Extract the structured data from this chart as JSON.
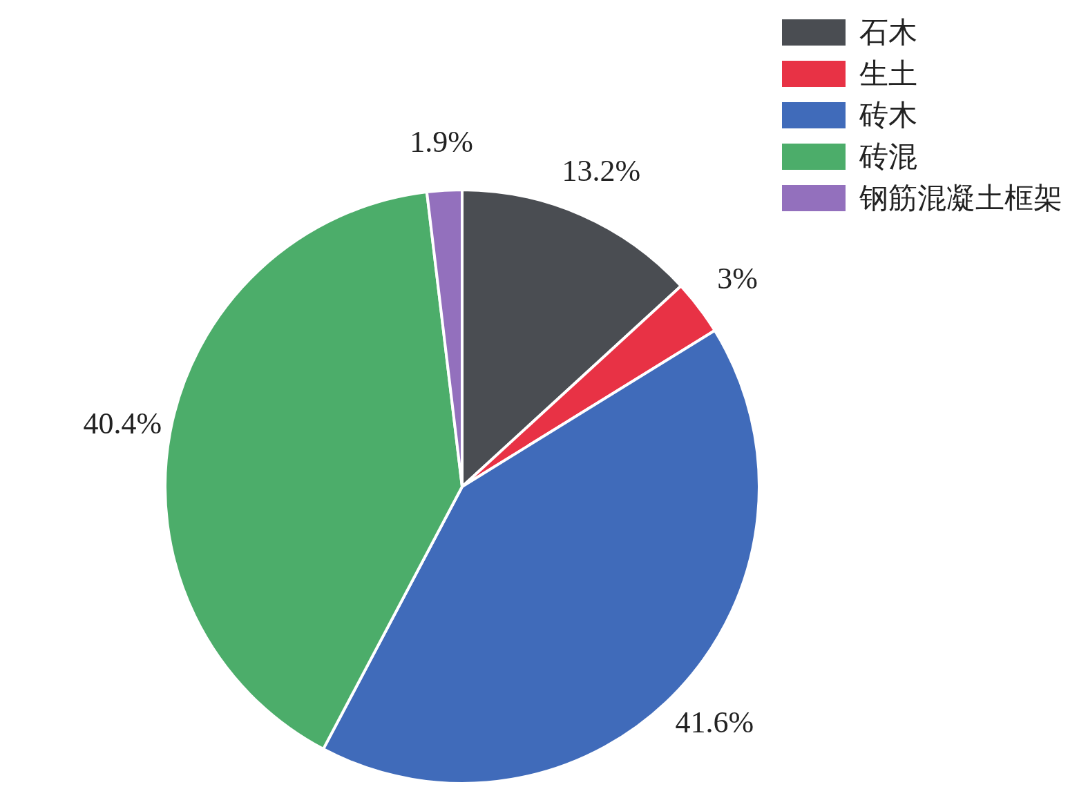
{
  "chart_data": {
    "type": "pie",
    "categories": [
      "石木",
      "生土",
      "砖木",
      "砖混",
      "钢筋混凝土框架"
    ],
    "values": [
      13.2,
      3,
      41.6,
      40.4,
      1.9
    ],
    "colors": [
      "#4a4d52",
      "#e83245",
      "#406bba",
      "#4cad6a",
      "#9370bd"
    ],
    "value_labels": [
      "13.2%",
      "3%",
      "41.6%",
      "40.4%",
      "1.9%"
    ],
    "legend": "top right"
  }
}
